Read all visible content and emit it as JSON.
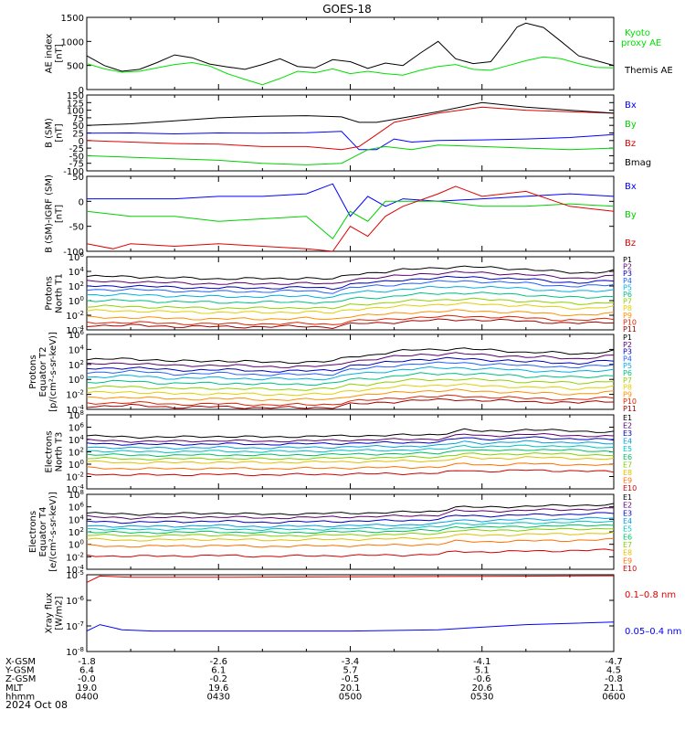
{
  "title": "GOES-18",
  "date": "2024 Oct 08",
  "colors": {
    "black": "#000000",
    "blue": "#0000ff",
    "green": "#00d000",
    "red": "#e00000",
    "kyoto": "#00e000"
  },
  "chart_data": [
    {
      "type": "line",
      "panel": "ae",
      "ylabel": [
        "AE index",
        "[nT]"
      ],
      "ylim": [
        0,
        1500
      ],
      "yticks": [
        "1500",
        "1000",
        "500",
        "0"
      ],
      "legend": [
        {
          "label": "Kyoto",
          "color": "#00e000"
        },
        {
          "label": "proxy AE",
          "color": "#00e000"
        },
        {
          "label": "Themis AE",
          "color": "#000000"
        }
      ],
      "series": [
        {
          "name": "Themis AE",
          "color": "#000000",
          "x": [
            0,
            4,
            8,
            12,
            16,
            20,
            24,
            28,
            32,
            36,
            40,
            44,
            48,
            52,
            56,
            60,
            64,
            68,
            72,
            76,
            80,
            84,
            88,
            92,
            96,
            98,
            100,
            104,
            108,
            112,
            116,
            120
          ],
          "y": [
            700,
            500,
            380,
            420,
            560,
            720,
            660,
            530,
            470,
            420,
            520,
            640,
            480,
            450,
            620,
            580,
            440,
            550,
            500,
            760,
            1000,
            640,
            540,
            580,
            1050,
            1300,
            1380,
            1290,
            1000,
            700,
            600,
            500
          ]
        },
        {
          "name": "Kyoto proxy AE",
          "color": "#00e000",
          "x": [
            0,
            4,
            8,
            12,
            16,
            20,
            24,
            28,
            32,
            36,
            40,
            44,
            48,
            52,
            56,
            60,
            64,
            68,
            72,
            76,
            80,
            84,
            88,
            92,
            96,
            100,
            104,
            108,
            112,
            116,
            120
          ],
          "y": [
            540,
            430,
            360,
            380,
            450,
            520,
            560,
            490,
            330,
            210,
            100,
            230,
            380,
            350,
            430,
            330,
            380,
            330,
            300,
            400,
            480,
            520,
            420,
            400,
            500,
            600,
            680,
            640,
            540,
            460,
            450
          ]
        }
      ]
    },
    {
      "type": "line",
      "panel": "bsm",
      "ylabel": [
        "B (SM)",
        "[nT]"
      ],
      "ylim": [
        -100,
        150
      ],
      "yticks": [
        "150",
        "125",
        "100",
        "75",
        "50",
        "25",
        "0",
        "-25",
        "-50",
        "-75",
        "-100"
      ],
      "legend": [
        {
          "label": "Bx",
          "color": "#0000ff"
        },
        {
          "label": "By",
          "color": "#00d000"
        },
        {
          "label": "Bz",
          "color": "#e00000"
        },
        {
          "label": "Bmag",
          "color": "#000000"
        }
      ],
      "series": [
        {
          "name": "Bx",
          "color": "#0000ff",
          "x": [
            0,
            10,
            20,
            30,
            40,
            50,
            58,
            62,
            66,
            70,
            74,
            80,
            90,
            100,
            110,
            120
          ],
          "y": [
            24,
            25,
            22,
            25,
            24,
            26,
            30,
            -30,
            -30,
            5,
            -5,
            0,
            2,
            5,
            10,
            20
          ]
        },
        {
          "name": "By",
          "color": "#00d000",
          "x": [
            0,
            10,
            20,
            30,
            40,
            50,
            58,
            64,
            68,
            74,
            80,
            90,
            100,
            110,
            120
          ],
          "y": [
            -50,
            -55,
            -60,
            -65,
            -75,
            -80,
            -75,
            -30,
            -20,
            -30,
            -15,
            -20,
            -25,
            -30,
            -25
          ]
        },
        {
          "name": "Bz",
          "color": "#e00000",
          "x": [
            0,
            10,
            20,
            30,
            40,
            50,
            58,
            62,
            66,
            70,
            80,
            90,
            100,
            110,
            120
          ],
          "y": [
            0,
            -5,
            -10,
            -12,
            -20,
            -20,
            -30,
            -20,
            20,
            60,
            90,
            110,
            100,
            95,
            90
          ]
        },
        {
          "name": "Bmag",
          "color": "#000000",
          "x": [
            0,
            10,
            20,
            30,
            40,
            50,
            58,
            62,
            66,
            70,
            80,
            90,
            100,
            110,
            120
          ],
          "y": [
            50,
            55,
            65,
            75,
            80,
            82,
            78,
            60,
            60,
            70,
            95,
            125,
            110,
            100,
            90
          ]
        }
      ]
    },
    {
      "type": "line",
      "panel": "bigrf",
      "ylabel": [
        "B (SM)-IGRF (SM)",
        "[nT]"
      ],
      "ylim": [
        -100,
        50
      ],
      "yticks": [
        "50",
        "0",
        "-50",
        "-100"
      ],
      "legend": [
        {
          "label": "Bx",
          "color": "#0000ff"
        },
        {
          "label": "By",
          "color": "#00d000"
        },
        {
          "label": "Bz",
          "color": "#e00000"
        }
      ],
      "series": [
        {
          "name": "Bx",
          "color": "#0000ff",
          "x": [
            0,
            10,
            20,
            30,
            40,
            50,
            56,
            60,
            64,
            68,
            72,
            80,
            90,
            100,
            110,
            120
          ],
          "y": [
            5,
            5,
            5,
            10,
            10,
            15,
            35,
            -30,
            10,
            -10,
            5,
            0,
            5,
            10,
            15,
            10
          ]
        },
        {
          "name": "By",
          "color": "#00d000",
          "x": [
            0,
            10,
            20,
            30,
            40,
            50,
            56,
            60,
            64,
            68,
            72,
            80,
            90,
            100,
            110,
            120
          ],
          "y": [
            -20,
            -30,
            -30,
            -40,
            -35,
            -30,
            -75,
            -20,
            -40,
            0,
            0,
            0,
            -10,
            -10,
            -5,
            -10
          ]
        },
        {
          "name": "Bz",
          "color": "#e00000",
          "x": [
            0,
            6,
            10,
            20,
            30,
            40,
            50,
            56,
            60,
            64,
            68,
            72,
            80,
            84,
            90,
            100,
            110,
            120
          ],
          "y": [
            -85,
            -95,
            -85,
            -90,
            -85,
            -90,
            -95,
            -100,
            -50,
            -70,
            -30,
            -10,
            15,
            30,
            10,
            20,
            -10,
            -20
          ]
        }
      ]
    },
    {
      "type": "line",
      "panel": "protons-north",
      "ylog": true,
      "ylabel": [
        "Protons",
        "North T1"
      ],
      "ylim": [
        0.0001,
        1000000
      ],
      "yticks": [
        "10^6",
        "10^4",
        "10^2",
        "10^0",
        "10^-2",
        "10^-4"
      ],
      "legend": [
        {
          "label": "P1",
          "color": "#000000"
        },
        {
          "label": "P2",
          "color": "#5a0070"
        },
        {
          "label": "P3",
          "color": "#0000c0"
        },
        {
          "label": "P4",
          "color": "#2060ff"
        },
        {
          "label": "P5",
          "color": "#00b0e0"
        },
        {
          "label": "P6",
          "color": "#00c080"
        },
        {
          "label": "P7",
          "color": "#90d000"
        },
        {
          "label": "P8",
          "color": "#e0d000"
        },
        {
          "label": "P9",
          "color": "#ff9000"
        },
        {
          "label": "P10",
          "color": "#e02000"
        },
        {
          "label": "P11",
          "color": "#a00000"
        }
      ],
      "base_log": [
        3.3,
        2.6,
        2.0,
        1.5,
        0.8,
        0.0,
        -0.8,
        -1.4,
        -2.3,
        -3.0,
        -3.4
      ],
      "profile_x": [
        0,
        10,
        20,
        30,
        40,
        50,
        56,
        60,
        64,
        68,
        72,
        76,
        80,
        84,
        88,
        92,
        96,
        100,
        104,
        108,
        112,
        116,
        120
      ],
      "profile_y": [
        0,
        0,
        -0.2,
        -0.3,
        -0.3,
        -0.2,
        -0.4,
        0.3,
        0.5,
        0.6,
        0.9,
        1.1,
        1.2,
        1.3,
        1.3,
        1.2,
        1.1,
        1.0,
        0.8,
        0.6,
        0.5,
        0.6,
        0.8
      ]
    },
    {
      "type": "line",
      "panel": "protons-equator",
      "ylog": true,
      "ylabel": [
        "Protons",
        "Equator T2",
        "[p/(cm²-s-sr-keV)]"
      ],
      "ylim": [
        0.0001,
        1000000
      ],
      "yticks": [
        "10^6",
        "10^4",
        "10^2",
        "10^0",
        "10^-2",
        "10^-4"
      ],
      "legend": [
        {
          "label": "P1",
          "color": "#000000"
        },
        {
          "label": "P2",
          "color": "#5a0070"
        },
        {
          "label": "P3",
          "color": "#0000c0"
        },
        {
          "label": "P4",
          "color": "#2060ff"
        },
        {
          "label": "P5",
          "color": "#00b0e0"
        },
        {
          "label": "P6",
          "color": "#00c080"
        },
        {
          "label": "P7",
          "color": "#90d000"
        },
        {
          "label": "P8",
          "color": "#e0d000"
        },
        {
          "label": "P9",
          "color": "#ff9000"
        },
        {
          "label": "P10",
          "color": "#e02000"
        },
        {
          "label": "P11",
          "color": "#a00000"
        }
      ],
      "base_log": [
        2.6,
        2.0,
        1.4,
        0.9,
        0.3,
        -0.4,
        -1.1,
        -1.8,
        -2.5,
        -3.2,
        -3.6
      ],
      "profile_x": [
        0,
        10,
        20,
        30,
        40,
        50,
        56,
        60,
        64,
        68,
        72,
        76,
        80,
        84,
        88,
        92,
        96,
        100,
        104,
        108,
        112,
        116,
        120
      ],
      "profile_y": [
        0,
        0.2,
        -0.2,
        -0.1,
        -0.3,
        -0.3,
        -0.2,
        0.5,
        0.6,
        0.9,
        1.2,
        1.4,
        1.4,
        1.5,
        1.4,
        1.3,
        1.2,
        1.0,
        1.0,
        0.9,
        0.8,
        1.0,
        1.2
      ]
    },
    {
      "type": "line",
      "panel": "electrons-north",
      "ylog": true,
      "ylabel": [
        "Electrons",
        "North T3"
      ],
      "ylim": [
        0.0001,
        100000000
      ],
      "yticks": [
        "10^8",
        "10^6",
        "10^4",
        "10^2",
        "10^0",
        "10^-2",
        "10^-4"
      ],
      "legend": [
        {
          "label": "E1",
          "color": "#000000"
        },
        {
          "label": "E2",
          "color": "#5a0070"
        },
        {
          "label": "E3",
          "color": "#0000c0"
        },
        {
          "label": "E4",
          "color": "#00a0e0"
        },
        {
          "label": "E5",
          "color": "#00c0c0"
        },
        {
          "label": "E6",
          "color": "#00c060"
        },
        {
          "label": "E7",
          "color": "#80d000"
        },
        {
          "label": "E8",
          "color": "#e0c000"
        },
        {
          "label": "E9",
          "color": "#ff7000"
        },
        {
          "label": "E10",
          "color": "#d00000"
        }
      ],
      "base_log": [
        4.6,
        3.9,
        3.4,
        2.8,
        2.2,
        1.6,
        1.0,
        0.4,
        -0.6,
        -1.6
      ],
      "profile_x": [
        0,
        10,
        20,
        30,
        40,
        50,
        60,
        70,
        80,
        86,
        90,
        96,
        100,
        110,
        120
      ],
      "profile_y": [
        0,
        -0.2,
        -0.2,
        -0.1,
        -0.2,
        -0.1,
        0,
        0.1,
        0.2,
        1.0,
        0.7,
        0.8,
        1.0,
        0.8,
        0.6
      ]
    },
    {
      "type": "line",
      "panel": "electrons-equator",
      "ylog": true,
      "ylabel": [
        "Electrons",
        "Equator T4",
        "[e/(cm²-s-sr-keV)]"
      ],
      "ylim": [
        0.0001,
        100000000
      ],
      "yticks": [
        "10^8",
        "10^6",
        "10^4",
        "10^2",
        "10^0",
        "10^-2",
        "10^-4"
      ],
      "legend": [
        {
          "label": "E1",
          "color": "#000000"
        },
        {
          "label": "E2",
          "color": "#5a0070"
        },
        {
          "label": "E3",
          "color": "#0000c0"
        },
        {
          "label": "E4",
          "color": "#00a0e0"
        },
        {
          "label": "E5",
          "color": "#00c0c0"
        },
        {
          "label": "E6",
          "color": "#00c060"
        },
        {
          "label": "E7",
          "color": "#80d000"
        },
        {
          "label": "E8",
          "color": "#e0c000"
        },
        {
          "label": "E9",
          "color": "#ff7000"
        },
        {
          "label": "E10",
          "color": "#d00000"
        }
      ],
      "base_log": [
        5.0,
        4.4,
        3.7,
        3.0,
        2.5,
        2.0,
        1.5,
        0.8,
        -0.2,
        -1.8
      ],
      "profile_x": [
        0,
        10,
        20,
        30,
        40,
        50,
        60,
        70,
        80,
        84,
        90,
        96,
        100,
        110,
        120
      ],
      "profile_y": [
        0,
        -0.2,
        -0.1,
        0,
        -0.2,
        -0.1,
        0,
        0.1,
        0.3,
        1.0,
        0.9,
        1.0,
        1.1,
        1.2,
        1.4
      ]
    },
    {
      "type": "line",
      "panel": "xray",
      "ylog": true,
      "ylabel": [
        "Xray flux",
        "[W/m2]"
      ],
      "ylim": [
        1e-08,
        1e-05
      ],
      "yticks": [
        "10^-5",
        "10^-6",
        "10^-7",
        "10^-8"
      ],
      "legend": [
        {
          "label": "0.1–0.8 nm",
          "color": "#e00000"
        },
        {
          "label": "0.05–0.4 nm",
          "color": "#0000ff"
        }
      ],
      "series": [
        {
          "name": "0.1–0.8 nm",
          "color": "#e00000",
          "x": [
            0,
            3,
            10,
            30,
            60,
            90,
            120
          ],
          "y_log": [
            -5.3,
            -5.05,
            -5.1,
            -5.1,
            -5.08,
            -5.06,
            -5.04
          ]
        },
        {
          "name": "0.05–0.4 nm",
          "color": "#0000ff",
          "x": [
            0,
            3,
            8,
            15,
            30,
            60,
            80,
            100,
            120
          ],
          "y_log": [
            -7.2,
            -6.95,
            -7.15,
            -7.2,
            -7.2,
            -7.2,
            -7.15,
            -6.95,
            -6.85
          ]
        }
      ]
    }
  ],
  "xaxis": {
    "tick_minutes": [
      0,
      30,
      60,
      90,
      120
    ],
    "rows": [
      {
        "label": "X-GSM",
        "values": [
          "-1.8",
          "-2.6",
          "-3.4",
          "-4.1",
          "-4.7"
        ]
      },
      {
        "label": "Y-GSM",
        "values": [
          "6.4",
          "6.1",
          "5.7",
          "5.1",
          "4.5"
        ]
      },
      {
        "label": "Z-GSM",
        "values": [
          "-0.0",
          "-0.2",
          "-0.5",
          "-0.6",
          "-0.8"
        ]
      },
      {
        "label": "MLT",
        "values": [
          "19.0",
          "19.6",
          "20.1",
          "20.6",
          "21.1"
        ]
      },
      {
        "label": "hhmm",
        "values": [
          "0400",
          "0430",
          "0500",
          "0530",
          "0600"
        ]
      }
    ]
  }
}
